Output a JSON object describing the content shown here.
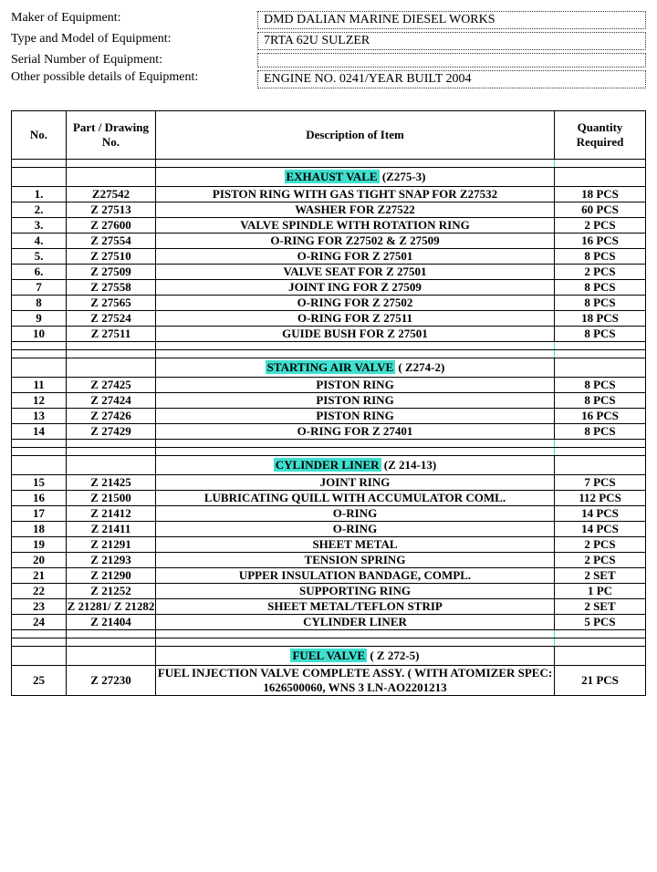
{
  "header": {
    "maker_label": "Maker of Equipment:",
    "maker_value": "DMD DALIAN MARINE DIESEL WORKS",
    "type_label": "Type and Model of Equipment:",
    "type_value": "7RTA 62U SULZER",
    "serial_label": "Serial Number of Equipment:",
    "serial_value": "",
    "other_label": "Other possible details of Equipment:",
    "other_value": "ENGINE NO. 0241/YEAR BUILT 2004"
  },
  "columns": {
    "no": "No.",
    "part": "Part / Drawing No.",
    "desc": "Description of Item",
    "qty": "Quantity Required"
  },
  "sections": [
    {
      "hl": "EXHAUST VALE",
      "rest": " (Z275-3)"
    },
    {
      "hl": "STARTING AIR VALVE",
      "rest": " ( Z274-2)"
    },
    {
      "hl": "CYLINDER LINER",
      "rest": " (Z 214-13)"
    },
    {
      "hl": "FUEL  VALVE",
      "rest": " ( Z 272-5)"
    }
  ],
  "rows": {
    "s0": [
      {
        "no": "1.",
        "part": "Z27542",
        "desc": "PISTON RING WITH GAS TIGHT SNAP FOR Z27532",
        "qty": "18 PCS"
      },
      {
        "no": "2.",
        "part": "Z 27513",
        "desc": "WASHER FOR Z27522",
        "qty": "60 PCS"
      },
      {
        "no": "3.",
        "part": "Z 27600",
        "desc": "VALVE SPINDLE WITH ROTATION RING",
        "qty": "2 PCS"
      },
      {
        "no": "4.",
        "part": "Z 27554",
        "desc": "O-RING FOR Z27502 & Z 27509",
        "qty": "16 PCS"
      },
      {
        "no": "5.",
        "part": "Z 27510",
        "desc": "O-RING FOR Z 27501",
        "qty": "8 PCS"
      },
      {
        "no": "6.",
        "part": "Z 27509",
        "desc": "VALVE SEAT FOR Z 27501",
        "qty": "2 PCS"
      },
      {
        "no": "7",
        "part": "Z 27558",
        "desc": "JOINT ING FOR Z 27509",
        "qty": "8 PCS"
      },
      {
        "no": "8",
        "part": "Z 27565",
        "desc": "O-RING FOR Z 27502",
        "qty": "8 PCS"
      },
      {
        "no": "9",
        "part": "Z 27524",
        "desc": "O-RING FOR Z 27511",
        "qty": "18 PCS"
      },
      {
        "no": "10",
        "part": "Z 27511",
        "desc": "GUIDE BUSH FOR Z 27501",
        "qty": "8 PCS"
      }
    ],
    "s1": [
      {
        "no": "11",
        "part": "Z 27425",
        "desc": "PISTON RING",
        "qty": "8 PCS"
      },
      {
        "no": "12",
        "part": "Z 27424",
        "desc": "PISTON RING",
        "qty": "8 PCS"
      },
      {
        "no": "13",
        "part": "Z 27426",
        "desc": "PISTON RING",
        "qty": "16 PCS"
      },
      {
        "no": "14",
        "part": "Z 27429",
        "desc": "O-RING FOR Z 27401",
        "qty": "8 PCS"
      }
    ],
    "s2": [
      {
        "no": "15",
        "part": "Z 21425",
        "desc": "JOINT RING",
        "qty": "7 PCS"
      },
      {
        "no": "16",
        "part": "Z 21500",
        "desc": "LUBRICATING QUILL WITH ACCUMULATOR COML.",
        "qty": "112 PCS"
      },
      {
        "no": "17",
        "part": "Z 21412",
        "desc": "O-RING",
        "qty": "14 PCS"
      },
      {
        "no": "18",
        "part": "Z 21411",
        "desc": "O-RING",
        "qty": "14 PCS"
      },
      {
        "no": "19",
        "part": "Z 21291",
        "desc": "SHEET METAL",
        "qty": "2 PCS"
      },
      {
        "no": "20",
        "part": "Z 21293",
        "desc": "TENSION SPRING",
        "qty": "2 PCS"
      },
      {
        "no": "21",
        "part": "Z 21290",
        "desc": "UPPER INSULATION BANDAGE, COMPL.",
        "qty": "2 SET"
      },
      {
        "no": "22",
        "part": "Z 21252",
        "desc": "SUPPORTING RING",
        "qty": "1 PC"
      },
      {
        "no": "23",
        "part": "Z 21281/ Z 21282",
        "desc": "SHEET METAL/TEFLON STRIP",
        "qty": "2 SET"
      },
      {
        "no": "24",
        "part": "Z 21404",
        "desc": "CYLINDER LINER",
        "qty": "5 PCS"
      }
    ],
    "s3": [
      {
        "no": "25",
        "part": "Z 27230",
        "desc": "FUEL INJECTION VALVE COMPLETE ASSY. ( WITH ATOMIZER SPEC: 1626500060, WNS 3 LN-AO2201213",
        "qty": "21 PCS"
      }
    ]
  },
  "style": {
    "highlight_bg": "#40e0d0",
    "border_color": "#000000",
    "font_family": "Garamond, Georgia, 'Times New Roman', serif"
  }
}
